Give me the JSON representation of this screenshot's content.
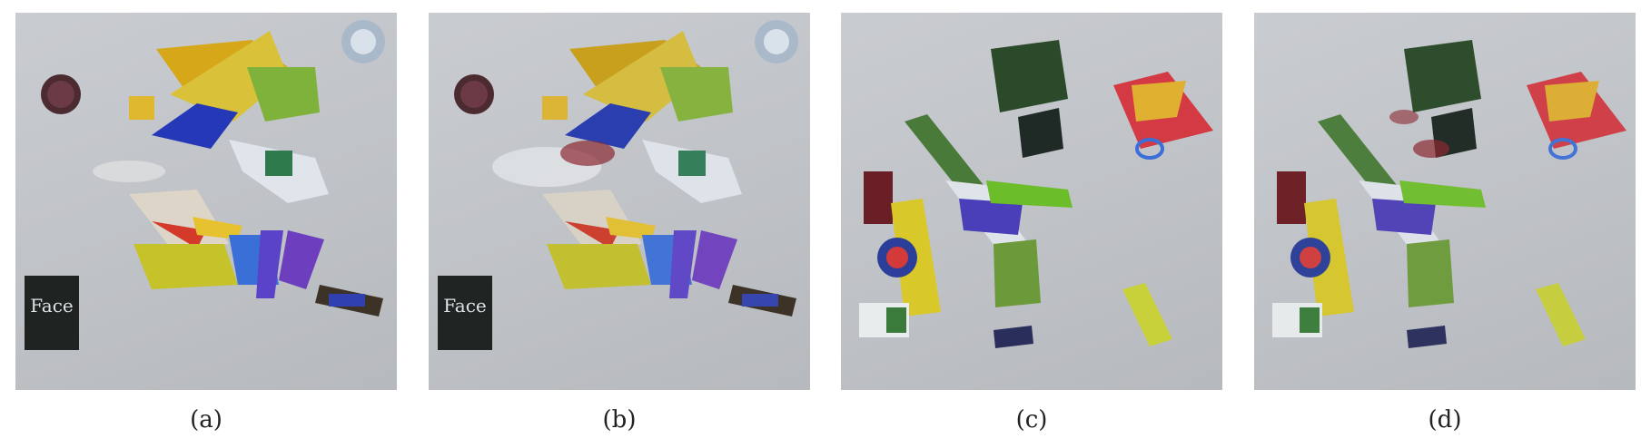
{
  "panels": [
    {
      "id": "a",
      "caption": "(a)",
      "label_text": "Face"
    },
    {
      "id": "b",
      "caption": "(b)",
      "label_text": "Face"
    },
    {
      "id": "c",
      "caption": "(c)"
    },
    {
      "id": "d",
      "caption": "(d)"
    }
  ]
}
